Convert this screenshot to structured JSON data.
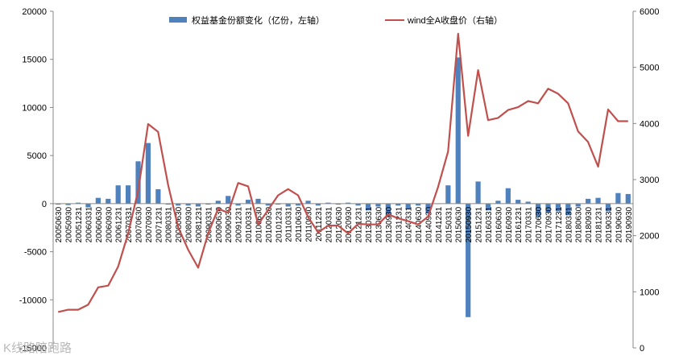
{
  "chart_data": {
    "type": "bar",
    "categories": [
      "20050630",
      "20050930",
      "20051231",
      "20060331",
      "20060630",
      "20060930",
      "20061231",
      "20070331",
      "20070630",
      "20070930",
      "20071231",
      "20080331",
      "20080630",
      "20080930",
      "20081231",
      "20090331",
      "20090630",
      "20090930",
      "20091231",
      "20100331",
      "20100630",
      "20100930",
      "20101231",
      "20110331",
      "20110630",
      "20110930",
      "20111231",
      "20120331",
      "20120630",
      "20120930",
      "20121231",
      "20130331",
      "20130630",
      "20130930",
      "20131231",
      "20140331",
      "20140630",
      "20140930",
      "20141231",
      "20150331",
      "20150630",
      "20150930",
      "20151231",
      "20160331",
      "20160630",
      "20160930",
      "20161231",
      "20170331",
      "20170630",
      "20170930",
      "20171231",
      "20180331",
      "20180630",
      "20180930",
      "20181231",
      "20190331",
      "20190630",
      "20190930"
    ],
    "series": [
      {
        "name": "权益基金份额变化（亿份，左轴）",
        "type": "bar",
        "axis": "left",
        "color": "#4f81bd",
        "values": [
          -100,
          -150,
          100,
          -400,
          600,
          500,
          1900,
          1900,
          4400,
          6300,
          1500,
          -100,
          -200,
          -200,
          -300,
          -100,
          300,
          800,
          -200,
          400,
          500,
          -200,
          -100,
          -300,
          -200,
          300,
          -200,
          100,
          -100,
          100,
          -200,
          -700,
          -300,
          -1300,
          -200,
          -600,
          -200,
          -1000,
          0,
          1900,
          15200,
          -11800,
          2300,
          -700,
          300,
          1600,
          400,
          200,
          -1400,
          -900,
          -800,
          -1200,
          -300,
          500,
          600,
          -800,
          1100,
          1000
        ]
      },
      {
        "name": "wind全A收盘价（右轴）",
        "type": "line",
        "axis": "right",
        "color": "#c0504d",
        "values": [
          640,
          680,
          680,
          770,
          1080,
          1110,
          1450,
          2040,
          2800,
          3990,
          3850,
          2900,
          2150,
          1750,
          1430,
          2040,
          2480,
          2410,
          2940,
          2880,
          2200,
          2460,
          2720,
          2830,
          2720,
          2330,
          2060,
          2180,
          2180,
          2040,
          2210,
          2200,
          2200,
          2380,
          2310,
          2260,
          2200,
          2340,
          2870,
          3500,
          5600,
          3780,
          4950,
          4060,
          4100,
          4240,
          4290,
          4400,
          4360,
          4620,
          4530,
          4360,
          3860,
          3670,
          3230,
          4250,
          4040,
          4040
        ]
      }
    ],
    "y_left": {
      "min": -15000,
      "max": 20000,
      "ticks": [
        "20000",
        "15000",
        "10000",
        "5000",
        "0",
        "-5000",
        "-10000",
        "-15000"
      ]
    },
    "y_right": {
      "min": 0,
      "max": 6000,
      "ticks": [
        "6000",
        "5000",
        "4000",
        "3000",
        "2000",
        "1000",
        "0"
      ]
    },
    "grid": false,
    "legend_position": "top-center",
    "watermark": "K线路陪跑路"
  }
}
